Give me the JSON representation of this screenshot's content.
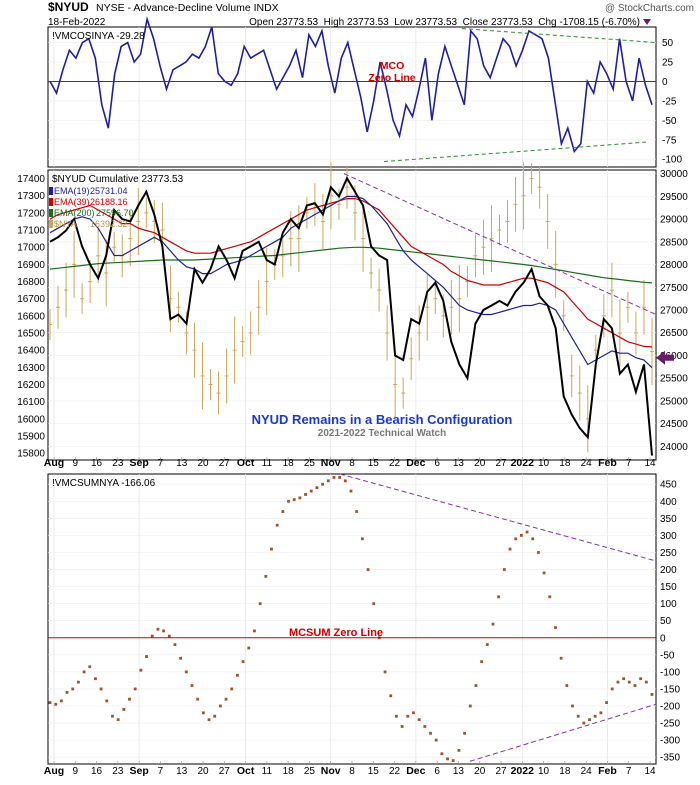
{
  "header": {
    "symbol": "$NYUD",
    "description": "NYSE - Advance-Decline Volume INDX",
    "credit": "@ StockCharts.com",
    "date": "18-Feb-2022",
    "ohlc_text": "Open 23773.53  High 23773.53  Low 23773.53  Close 23773.53  Chg -1708.15 (-6.70%)"
  },
  "x_axis_labels": [
    "Aug",
    "9",
    "16",
    "23",
    "Sep",
    "7",
    "13",
    "20",
    "27",
    "Oct",
    "11",
    "18",
    "25",
    "Nov",
    "8",
    "15",
    "22",
    "Dec",
    "6",
    "13",
    "20",
    "27",
    "2022",
    "10",
    "18",
    "24",
    "Feb",
    "7",
    "14"
  ],
  "annotations": {
    "mco_zero": "MCO\nZero Line",
    "title": "NYUD Remains in a Bearish Configuration",
    "subtitle": "2021-2022 Technical Watch",
    "mcsum_zero": "MCSUM Zero Line"
  },
  "colors": {
    "blue": "#1f1f9e",
    "red": "#cc0000",
    "green": "#1a6e1a",
    "tan": "#c9a85a",
    "dot": "#a0522d",
    "trend": "#8b2fa0",
    "green_trend": "#2e8b2e",
    "arrow": "#6b1a6b"
  },
  "chart_data": [
    {
      "type": "line",
      "title": "!VMCOSINYA -29.28",
      "series": [
        {
          "name": "!VMCOSINYA",
          "values": [
            0,
            -15,
            15,
            40,
            30,
            50,
            55,
            30,
            -30,
            -60,
            10,
            45,
            50,
            25,
            35,
            80,
            55,
            20,
            -10,
            15,
            20,
            25,
            35,
            30,
            45,
            70,
            10,
            0,
            -5,
            10,
            45,
            30,
            35,
            40,
            15,
            -10,
            5,
            20,
            40,
            5,
            60,
            45,
            65,
            20,
            -15,
            30,
            50,
            15,
            -20,
            -65,
            -25,
            25,
            -10,
            -50,
            -70,
            -30,
            -45,
            -10,
            30,
            -50,
            10,
            45,
            20,
            -5,
            -30,
            65,
            55,
            20,
            5,
            30,
            55,
            45,
            20,
            40,
            65,
            60,
            55,
            30,
            -25,
            -80,
            -60,
            -90,
            -80,
            0,
            -15,
            25,
            10,
            -10,
            55,
            0,
            -25,
            30,
            -5,
            -30
          ]
        }
      ],
      "y_ticks": [
        50,
        25,
        0,
        -25,
        -50,
        -75,
        -100
      ],
      "ylim": [
        -110,
        70
      ]
    },
    {
      "type": "line",
      "title": "$NYUD Cumulative 23773.53",
      "legend": [
        {
          "name": "EMA(19)",
          "value": "25731.04"
        },
        {
          "name": "EMA(39)",
          "value": "26188.16"
        },
        {
          "name": "EMA(200)",
          "value": "27596.70"
        },
        {
          "name": "$NYA",
          "value": "16392.32"
        }
      ],
      "series": [
        {
          "name": "$NYUD Cumulative",
          "values": [
            28500,
            28600,
            28750,
            29000,
            28400,
            28000,
            27700,
            28200,
            29200,
            29000,
            28950,
            29300,
            29600,
            29100,
            28400,
            26800,
            26900,
            26700,
            27900,
            27600,
            27900,
            28400,
            28100,
            27700,
            28300,
            28400,
            28500,
            28100,
            28000,
            28700,
            29000,
            28800,
            29300,
            29350,
            29100,
            29700,
            29500,
            29900,
            29600,
            29300,
            28400,
            28200,
            28100,
            26000,
            25900,
            26800,
            26700,
            27400,
            27600,
            27200,
            26300,
            25800,
            25500,
            26700,
            27000,
            27100,
            27200,
            27100,
            27400,
            27600,
            27900,
            27300,
            27100,
            26600,
            25100,
            24700,
            24400,
            24200,
            25800,
            26800,
            26600,
            25600,
            25800,
            25200,
            25800,
            23800
          ]
        },
        {
          "name": "EMA(19)",
          "values": [
            28700,
            28800,
            28900,
            29000,
            29050,
            29000,
            28800,
            28500,
            28200,
            28200,
            28300,
            28400,
            28500,
            28600,
            28500,
            28300,
            28100,
            27950,
            27900,
            27800,
            27800,
            27900,
            28000,
            28050,
            28100,
            28200,
            28300,
            28400,
            28500,
            28600,
            28800,
            28900,
            29000,
            29100,
            29200,
            29300,
            29400,
            29500,
            29500,
            29450,
            29300,
            29100,
            28900,
            28600,
            28300,
            28100,
            27950,
            27800,
            27650,
            27500,
            27300,
            27100,
            27000,
            26950,
            26900,
            26900,
            26950,
            27000,
            27050,
            27100,
            27100,
            27150,
            27100,
            27000,
            26700,
            26400,
            26100,
            25800,
            25900,
            26000,
            26100,
            26050,
            26050,
            25950,
            25900,
            25731.04
          ]
        },
        {
          "name": "EMA(39)",
          "values": [
            29000,
            29100,
            29150,
            29200,
            29250,
            29300,
            29200,
            29100,
            29000,
            28900,
            28900,
            28800,
            28750,
            28700,
            28600,
            28500,
            28400,
            28300,
            28250,
            28250,
            28250,
            28300,
            28350,
            28400,
            28450,
            28500,
            28600,
            28700,
            28800,
            28900,
            29000,
            29100,
            29200,
            29250,
            29300,
            29350,
            29400,
            29450,
            29450,
            29400,
            29300,
            29200,
            29000,
            28800,
            28600,
            28400,
            28300,
            28200,
            28100,
            28000,
            27850,
            27750,
            27650,
            27600,
            27550,
            27550,
            27550,
            27600,
            27650,
            27700,
            27700,
            27650,
            27600,
            27500,
            27400,
            27200,
            27000,
            26800,
            26700,
            26600,
            26500,
            26400,
            26300,
            26250,
            26200,
            26188.16
          ]
        },
        {
          "name": "EMA(200)",
          "values": [
            27900,
            27920,
            27940,
            27960,
            27980,
            28000,
            28020,
            28030,
            28040,
            28050,
            28060,
            28070,
            28080,
            28090,
            28100,
            28100,
            28100,
            28100,
            28100,
            28110,
            28120,
            28130,
            28140,
            28150,
            28160,
            28170,
            28180,
            28190,
            28200,
            28220,
            28240,
            28260,
            28280,
            28300,
            28320,
            28340,
            28360,
            28370,
            28380,
            28380,
            28370,
            28360,
            28340,
            28320,
            28300,
            28280,
            28260,
            28240,
            28220,
            28200,
            28180,
            28160,
            28140,
            28120,
            28100,
            28080,
            28060,
            28040,
            28020,
            28000,
            27980,
            27950,
            27920,
            27890,
            27860,
            27830,
            27800,
            27770,
            27740,
            27710,
            27690,
            27670,
            27650,
            27630,
            27610,
            27596.7
          ]
        },
        {
          "name": "$NYA",
          "values": [
            16550,
            16650,
            16750,
            16900,
            16700,
            16800,
            16950,
            16850,
            17000,
            16950,
            17050,
            17150,
            17200,
            17150,
            17100,
            16700,
            16650,
            16500,
            16400,
            16250,
            16200,
            16150,
            16250,
            16400,
            16450,
            16500,
            16650,
            16800,
            16900,
            16950,
            17050,
            17050,
            17200,
            17250,
            17150,
            17300,
            17250,
            17350,
            17200,
            17050,
            16850,
            16750,
            16500,
            16200,
            16150,
            16350,
            16500,
            16650,
            16700,
            16600,
            16650,
            16700,
            16800,
            16950,
            17000,
            17050,
            17100,
            17150,
            17250,
            17300,
            17400,
            17350,
            17150,
            16900,
            16600,
            16250,
            16150,
            16000,
            16400,
            16600,
            16750,
            16500,
            16650,
            16500,
            16650,
            16392.32
          ]
        }
      ],
      "y_ticks_left": [
        17400,
        17300,
        17200,
        17100,
        17000,
        16900,
        16800,
        16700,
        16600,
        16500,
        16400,
        16300,
        16200,
        16100,
        16000,
        15900,
        15800
      ],
      "y_ticks_right": [
        30000,
        29500,
        29000,
        28500,
        28000,
        27500,
        27000,
        26500,
        26000,
        25500,
        25000,
        24500,
        24000
      ],
      "ylim": [
        23700,
        30080
      ]
    },
    {
      "type": "scatter",
      "title": "!VMCSUMNYA -166.06",
      "series": [
        {
          "name": "!VMCSUMNYA",
          "values": [
            -190,
            -195,
            -185,
            -160,
            -150,
            -130,
            -100,
            -85,
            -120,
            -150,
            -185,
            -230,
            -240,
            -210,
            -180,
            -150,
            -95,
            -55,
            5,
            25,
            20,
            5,
            -20,
            -60,
            -100,
            -140,
            -180,
            -220,
            -240,
            -230,
            -200,
            -180,
            -150,
            -110,
            -70,
            -30,
            20,
            100,
            180,
            260,
            330,
            370,
            400,
            405,
            410,
            420,
            430,
            440,
            450,
            460,
            470,
            470,
            460,
            430,
            370,
            290,
            200,
            100,
            0,
            -100,
            -170,
            -230,
            -260,
            -230,
            -220,
            -240,
            -260,
            -280,
            -300,
            -340,
            -355,
            -360,
            -330,
            -280,
            -200,
            -140,
            -70,
            -20,
            40,
            120,
            200,
            260,
            290,
            300,
            310,
            290,
            250,
            190,
            120,
            30,
            -60,
            -140,
            -200,
            -230,
            -250,
            -240,
            -230,
            -220,
            -190,
            -150,
            -130,
            -120,
            -130,
            -140,
            -120,
            -130,
            -166.06
          ]
        }
      ],
      "y_ticks": [
        450,
        400,
        350,
        300,
        250,
        200,
        150,
        100,
        50,
        0,
        -50,
        -100,
        -150,
        -200,
        -250,
        -300,
        -350
      ],
      "ylim": [
        -370,
        480
      ]
    }
  ]
}
